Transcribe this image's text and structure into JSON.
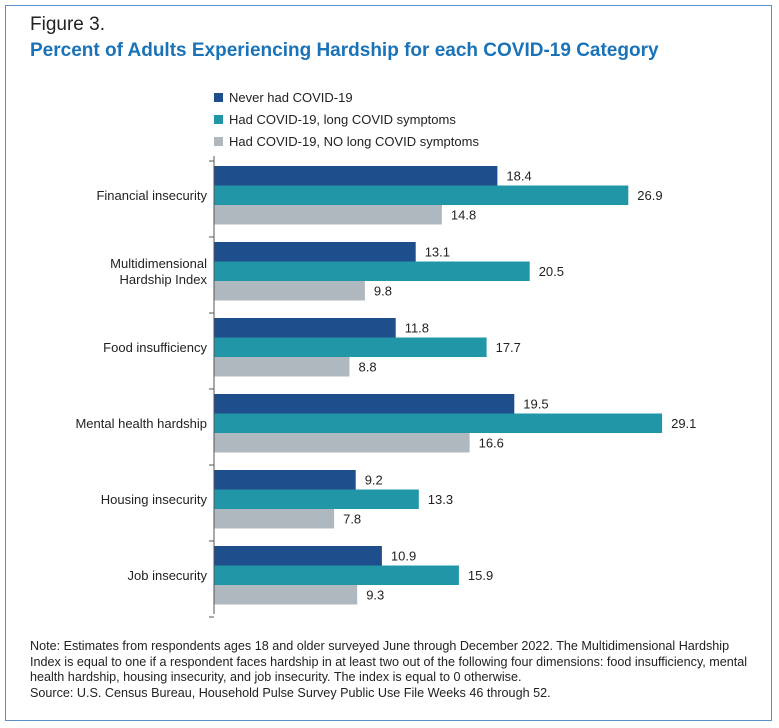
{
  "figure_label": "Figure 3.",
  "title": "Percent of Adults Experiencing Hardship for each COVID-19 Category",
  "note": "Note: Estimates from respondents ages 18 and older surveyed June through December 2022. The Multidimensional Hardship Index is equal to one if a respondent faces hardship in at least two out of the following four dimensions: food insufficiency, mental health hardship, housing insecurity, and job insecurity. The index is equal to 0 otherwise.",
  "source": "Source: U.S. Census Bureau, Household Pulse Survey Public Use File Weeks 46 through 52.",
  "chart_data": {
    "type": "bar",
    "orientation": "horizontal",
    "title": "Percent of Adults Experiencing Hardship for each COVID-19 Category",
    "legend_position": "top",
    "grid": false,
    "xlim": [
      0,
      32
    ],
    "categories": [
      [
        "Financial insecurity"
      ],
      [
        "Multidimensional",
        "Hardship Index"
      ],
      [
        "Food insufficiency"
      ],
      [
        "Mental health hardship"
      ],
      [
        "Housing insecurity"
      ],
      [
        "Job insecurity"
      ]
    ],
    "series": [
      {
        "name": "Never had COVID-19",
        "color": "#1f4e8c",
        "values": [
          18.4,
          13.1,
          11.8,
          19.5,
          9.2,
          10.9
        ],
        "labels": [
          "18.4",
          "13.1",
          "11.8",
          "19.5",
          "9.2",
          "10.9"
        ]
      },
      {
        "name": "Had COVID-19, long COVID symptoms",
        "color": "#2196a7",
        "values": [
          26.9,
          20.5,
          17.7,
          29.1,
          13.3,
          15.9
        ],
        "labels": [
          "26.9",
          "20.5",
          "17.7",
          "29.1",
          "13.3",
          "15.9"
        ]
      },
      {
        "name": "Had COVID-19, NO long COVID symptoms",
        "color": "#b0b8bf",
        "values": [
          14.8,
          9.8,
          8.8,
          16.6,
          7.8,
          9.3
        ],
        "labels": [
          "14.8",
          "9.8",
          "8.8",
          "16.6",
          "7.8",
          "9.3"
        ]
      }
    ]
  }
}
